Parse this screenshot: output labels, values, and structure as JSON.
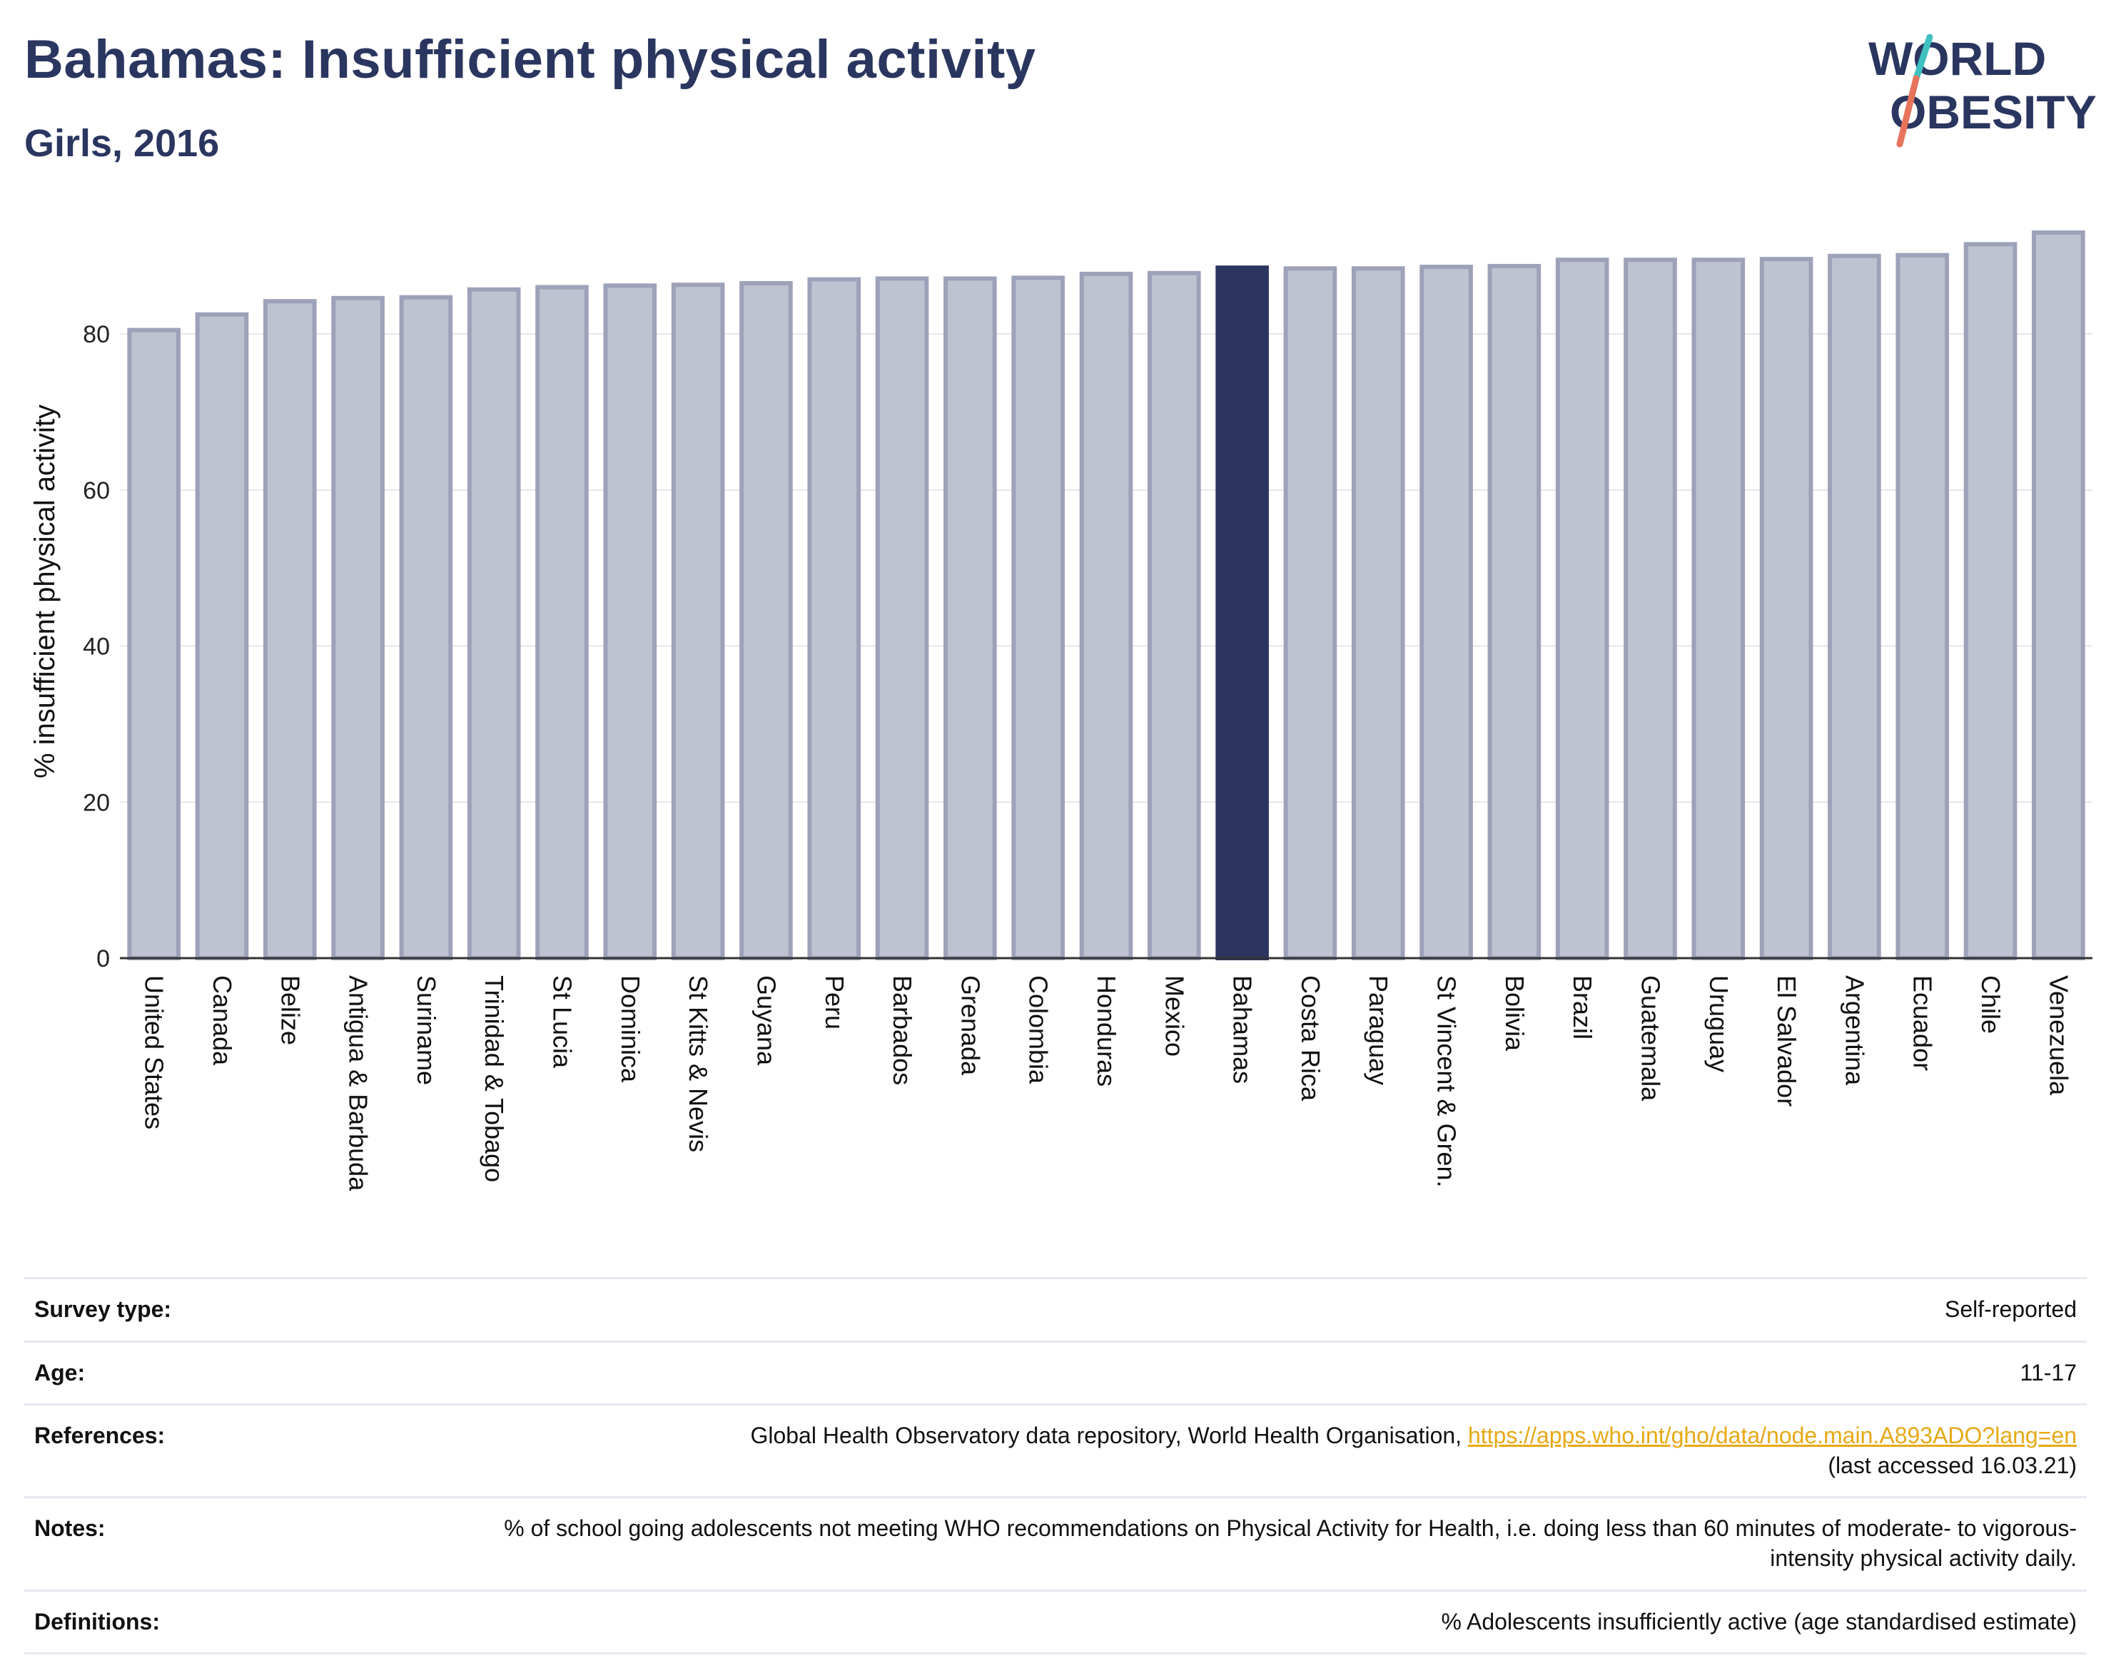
{
  "header": {
    "title": "Bahamas: Insufficient physical activity",
    "subtitle": "Girls, 2016"
  },
  "logo": {
    "line1": "WORLD",
    "line2": "OBESITY"
  },
  "colors": {
    "highlight": "#2b3560",
    "bar": "#bfc2d0",
    "bar_border": "#9da2b9",
    "accent_teal": "#3fc1c0",
    "accent_coral": "#e8735c",
    "link": "#e6a917"
  },
  "chart_data": {
    "type": "bar",
    "title": "Bahamas: Insufficient physical activity",
    "subtitle": "Girls, 2016",
    "ylabel": "% insufficient physical activity",
    "xlabel": "",
    "ylim": [
      0,
      94
    ],
    "yticks": [
      0,
      20,
      40,
      60,
      80
    ],
    "grid": true,
    "highlight": "Bahamas",
    "categories": [
      "United States",
      "Canada",
      "Belize",
      "Antigua & Barbuda",
      "Suriname",
      "Trinidad & Tobago",
      "St Lucia",
      "Dominica",
      "St Kitts & Nevis",
      "Guyana",
      "Peru",
      "Barbados",
      "Grenada",
      "Colombia",
      "Honduras",
      "Mexico",
      "Bahamas",
      "Costa Rica",
      "Paraguay",
      "St Vincent & Gren.",
      "Bolivia",
      "Brazil",
      "Guatemala",
      "Uruguay",
      "El Salvador",
      "Argentina",
      "Ecuador",
      "Chile",
      "Venezuela"
    ],
    "values": [
      80.5,
      82.5,
      84.2,
      84.6,
      84.7,
      85.7,
      86.0,
      86.2,
      86.3,
      86.5,
      87.0,
      87.1,
      87.1,
      87.2,
      87.7,
      87.8,
      88.5,
      88.4,
      88.4,
      88.6,
      88.7,
      89.5,
      89.5,
      89.5,
      89.6,
      90.0,
      90.1,
      91.5,
      93.0
    ]
  },
  "info": [
    {
      "label": "Survey type:",
      "value": "Self-reported"
    },
    {
      "label": "Age:",
      "value": "11-17"
    },
    {
      "label": "References:",
      "value": "Global Health Observatory data repository, World Health Organisation,",
      "link": "https://apps.who.int/gho/data/node.main.A893ADO?lang=en",
      "suffix": "(last accessed 16.03.21)"
    },
    {
      "label": "Notes:",
      "value": "% of school going adolescents not meeting WHO recommendations on Physical Activity for Health, i.e. doing less than 60 minutes of moderate- to vigorous-intensity physical activity daily."
    },
    {
      "label": "Definitions:",
      "value": "% Adolescents insufficiently active (age standardised estimate)"
    }
  ]
}
